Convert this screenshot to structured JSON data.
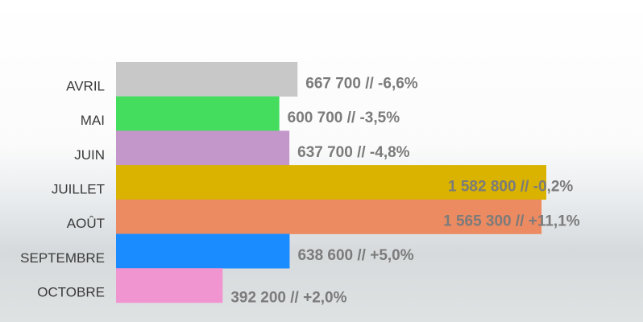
{
  "chart_data": {
    "type": "bar",
    "orientation": "horizontal",
    "categories": [
      "AVRIL",
      "MAI",
      "JUIN",
      "JUILLET",
      "AOÛT",
      "SEPTEMBRE",
      "OCTOBRE"
    ],
    "values": [
      667700,
      600700,
      637700,
      1582800,
      1565300,
      638600,
      392200
    ],
    "value_labels": [
      "667 700 // -6,6%",
      "600 700 // -3,5%",
      "637 700 // -4,8%",
      "1 582 800 // -0,2%",
      "1 565 300 // +11,1%",
      "638 600 // +5,0%",
      "392 200 // +2,0%"
    ],
    "colors": [
      "#c8c8c8",
      "#44dd5e",
      "#c397c9",
      "#d9b300",
      "#ec8a61",
      "#1a8cff",
      "#f095d0"
    ]
  }
}
